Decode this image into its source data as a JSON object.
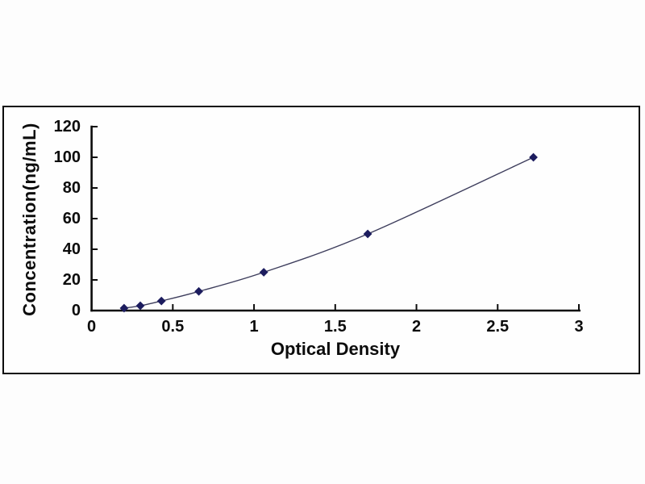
{
  "chart_data": {
    "type": "scatter",
    "title": "",
    "xlabel": "Optical Density",
    "ylabel": "Concentration(ng/mL)",
    "x": [
      0.2,
      0.3,
      0.43,
      0.66,
      1.06,
      1.7,
      2.72
    ],
    "y": [
      1.56,
      3.13,
      6.25,
      12.5,
      25,
      50,
      100
    ],
    "xlim": [
      0,
      3
    ],
    "ylim": [
      0,
      120
    ],
    "x_ticks": [
      0,
      0.5,
      1,
      1.5,
      2,
      2.5,
      3
    ],
    "y_ticks": [
      0,
      20,
      40,
      60,
      80,
      100,
      120
    ],
    "grid": false,
    "legend": "none",
    "marker": "diamond",
    "line_style": "smooth",
    "colors": {
      "marker": "#1c1c5e",
      "line": "#3d3d5c",
      "axis": "#0c0c0c",
      "text": "#0c0c0c",
      "frame": "#0c0c0c",
      "background": "#fefefe"
    }
  }
}
